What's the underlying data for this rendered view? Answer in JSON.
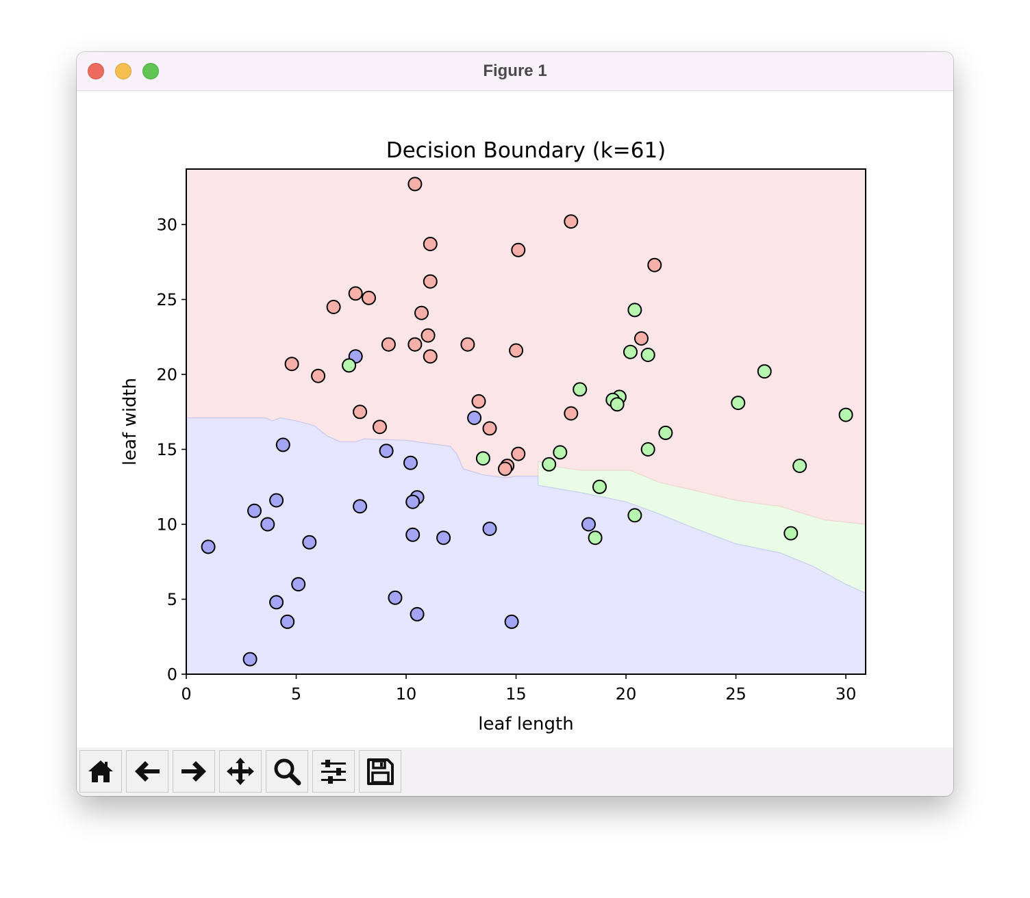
{
  "window": {
    "title": "Figure 1"
  },
  "toolbar": {
    "buttons": [
      {
        "name": "home-button",
        "icon": "home-icon"
      },
      {
        "name": "back-button",
        "icon": "arrow-left-icon"
      },
      {
        "name": "forward-button",
        "icon": "arrow-right-icon"
      },
      {
        "name": "pan-button",
        "icon": "move-icon"
      },
      {
        "name": "zoom-button",
        "icon": "magnifier-icon"
      },
      {
        "name": "configure-subplots-button",
        "icon": "sliders-icon"
      },
      {
        "name": "save-button",
        "icon": "floppy-disk-icon"
      }
    ]
  },
  "chart_data": {
    "type": "scatter",
    "title": "Decision Boundary (k=61)",
    "xlabel": "leaf length",
    "ylabel": "leaf width",
    "xlim": [
      0,
      30.9
    ],
    "ylim": [
      0,
      33.7
    ],
    "xticks": [
      0,
      5,
      10,
      15,
      20,
      25,
      30
    ],
    "yticks": [
      0,
      5,
      10,
      15,
      20,
      25,
      30
    ],
    "grid": false,
    "colors": {
      "red_region": "#fbe5e6",
      "blue_region": "#e5e5fd",
      "green_region": "#e8fce6",
      "red_point": "#f6b0a9",
      "blue_point": "#a5a5f6",
      "green_point": "#b6f6ae"
    },
    "regions": {
      "red_blue_boundary": [
        [
          0,
          17.1
        ],
        [
          3.6,
          17.1
        ],
        [
          3.9,
          16.9
        ],
        [
          4.3,
          17.1
        ],
        [
          5,
          16.9
        ],
        [
          5.8,
          16.6
        ],
        [
          6.4,
          15.9
        ],
        [
          7,
          15.5
        ],
        [
          7.7,
          15.5
        ],
        [
          8.1,
          15.7
        ],
        [
          10,
          15.6
        ],
        [
          12,
          15.2
        ],
        [
          12.3,
          14.7
        ],
        [
          12.6,
          13.7
        ],
        [
          13.5,
          13.3
        ],
        [
          14.5,
          13.1
        ],
        [
          15,
          13.2
        ],
        [
          16,
          13.2
        ]
      ],
      "red_green_boundary": [
        [
          16,
          13.2
        ],
        [
          16,
          14.2
        ],
        [
          17,
          13.8
        ],
        [
          18,
          13.6
        ],
        [
          20.2,
          13.6
        ],
        [
          21.5,
          12.8
        ],
        [
          23,
          12.3
        ],
        [
          25,
          11.6
        ],
        [
          27,
          11.2
        ],
        [
          29,
          10.3
        ],
        [
          30.9,
          10.0
        ]
      ],
      "blue_green_boundary": [
        [
          16,
          13.2
        ],
        [
          16,
          12.6
        ],
        [
          18,
          12.1
        ],
        [
          20,
          11.5
        ],
        [
          21.5,
          10.7
        ],
        [
          23,
          9.8
        ],
        [
          25,
          8.7
        ],
        [
          27,
          8.1
        ],
        [
          28.5,
          7.2
        ],
        [
          30,
          6
        ],
        [
          30.9,
          5.4
        ]
      ]
    },
    "series": [
      {
        "class": "red",
        "points": [
          [
            10.4,
            32.7
          ],
          [
            17.5,
            30.2
          ],
          [
            11.1,
            28.7
          ],
          [
            15.1,
            28.3
          ],
          [
            21.3,
            27.3
          ],
          [
            11.1,
            26.2
          ],
          [
            7.7,
            25.4
          ],
          [
            8.3,
            25.1
          ],
          [
            6.7,
            24.5
          ],
          [
            10.7,
            24.1
          ],
          [
            20.7,
            22.4
          ],
          [
            11,
            22.6
          ],
          [
            10.4,
            22.0
          ],
          [
            9.2,
            22.0
          ],
          [
            12.8,
            22.0
          ],
          [
            15,
            21.6
          ],
          [
            11.1,
            21.2
          ],
          [
            4.8,
            20.7
          ],
          [
            6,
            19.9
          ],
          [
            13.3,
            18.2
          ],
          [
            7.9,
            17.5
          ],
          [
            17.5,
            17.4
          ],
          [
            8.8,
            16.5
          ],
          [
            13.8,
            16.4
          ],
          [
            15.1,
            14.7
          ],
          [
            14.6,
            13.9
          ],
          [
            14.5,
            13.7
          ]
        ]
      },
      {
        "class": "blue",
        "points": [
          [
            7.7,
            21.2
          ],
          [
            13.1,
            17.1
          ],
          [
            4.4,
            15.3
          ],
          [
            9.1,
            14.9
          ],
          [
            10.2,
            14.1
          ],
          [
            4.1,
            11.6
          ],
          [
            10.5,
            11.8
          ],
          [
            10.3,
            11.5
          ],
          [
            3.1,
            10.9
          ],
          [
            7.9,
            11.2
          ],
          [
            3.7,
            10.0
          ],
          [
            18.3,
            10.0
          ],
          [
            13.8,
            9.7
          ],
          [
            10.3,
            9.3
          ],
          [
            11.7,
            9.1
          ],
          [
            5.6,
            8.8
          ],
          [
            1,
            8.5
          ],
          [
            5.1,
            6.0
          ],
          [
            9.5,
            5.1
          ],
          [
            4.1,
            4.8
          ],
          [
            10.5,
            4.0
          ],
          [
            4.6,
            3.5
          ],
          [
            14.8,
            3.5
          ],
          [
            2.9,
            1.0
          ]
        ]
      },
      {
        "class": "green",
        "points": [
          [
            20.4,
            24.3
          ],
          [
            20.2,
            21.5
          ],
          [
            21,
            21.3
          ],
          [
            7.4,
            20.6
          ],
          [
            26.3,
            20.2
          ],
          [
            17.9,
            19.0
          ],
          [
            19.7,
            18.5
          ],
          [
            19.4,
            18.3
          ],
          [
            19.6,
            18.0
          ],
          [
            25.1,
            18.1
          ],
          [
            30,
            17.3
          ],
          [
            21.8,
            16.1
          ],
          [
            21,
            15.0
          ],
          [
            17,
            14.8
          ],
          [
            13.5,
            14.4
          ],
          [
            16.5,
            14.0
          ],
          [
            27.9,
            13.9
          ],
          [
            18.8,
            12.5
          ],
          [
            20.4,
            10.6
          ],
          [
            27.5,
            9.4
          ],
          [
            18.6,
            9.1
          ]
        ]
      }
    ]
  }
}
